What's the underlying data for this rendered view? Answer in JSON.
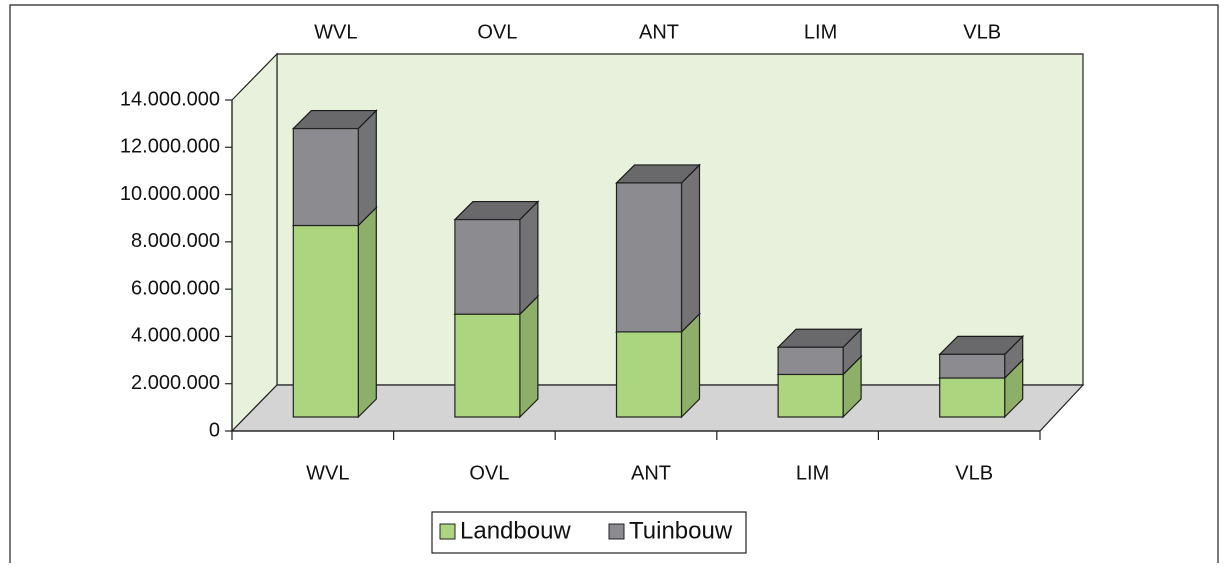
{
  "chart_data": {
    "type": "bar3d_stacked",
    "categories": [
      "WVL",
      "OVL",
      "ANT",
      "LIM",
      "VLB"
    ],
    "series": [
      {
        "name": "Landbouw",
        "color": "#acd57f",
        "values": [
          8100000,
          4350000,
          3600000,
          1800000,
          1650000
        ]
      },
      {
        "name": "Tuinbouw",
        "color": "#8c8c90",
        "values": [
          4100000,
          4000000,
          6300000,
          1150000,
          1000000
        ]
      }
    ],
    "ylim": [
      0,
      14000000
    ],
    "yticks": [
      0,
      {
        "value": 2000000,
        "label": "2.000.000"
      },
      {
        "value": 4000000,
        "label": "4.000.000"
      },
      {
        "value": 6000000,
        "label": "6.000.000"
      },
      {
        "value": 8000000,
        "label": "8.000.000"
      },
      {
        "value": 10000000,
        "label": "10.000.000"
      },
      {
        "value": 12000000,
        "label": "12.000.000"
      },
      {
        "value": 14000000,
        "label": "14.000.000"
      }
    ],
    "legend": "bottom"
  }
}
